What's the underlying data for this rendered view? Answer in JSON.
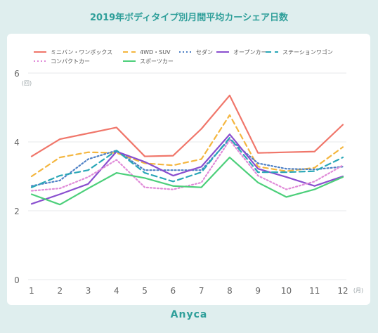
{
  "title": "2019年ボディタイプ別月間平均カーシェア日数",
  "brand": "Anyca",
  "chart_data": {
    "type": "line",
    "title": "2019年ボディタイプ別月間平均カーシェア日数",
    "ylabel": "(回)",
    "xlabel": "(月)",
    "x": [
      1,
      2,
      3,
      4,
      5,
      6,
      7,
      8,
      9,
      10,
      11,
      12
    ],
    "ylim": [
      0,
      6
    ],
    "yticks": [
      0,
      2,
      4,
      6
    ],
    "grid": true,
    "legend_position": "top-left",
    "series": [
      {
        "name": "ミニバン・ワンボックス",
        "color": "#f0766a",
        "dash": "",
        "values": [
          3.58,
          4.08,
          4.25,
          4.42,
          3.58,
          3.6,
          4.38,
          5.35,
          3.68,
          3.7,
          3.72,
          4.5
        ]
      },
      {
        "name": "4WD・SUV",
        "color": "#f4b63f",
        "dash": "7 5",
        "values": [
          3.0,
          3.55,
          3.7,
          3.68,
          3.38,
          3.32,
          3.5,
          4.78,
          3.28,
          3.15,
          3.25,
          3.85
        ]
      },
      {
        "name": "セダン",
        "color": "#4e80c5",
        "dash": "2 3",
        "values": [
          2.72,
          2.88,
          3.5,
          3.75,
          3.18,
          3.18,
          3.18,
          4.08,
          3.38,
          3.22,
          3.2,
          3.28
        ]
      },
      {
        "name": "オープンカー",
        "color": "#8a4fcf",
        "dash": "",
        "values": [
          2.2,
          2.48,
          2.78,
          3.72,
          3.42,
          3.02,
          3.28,
          4.22,
          3.22,
          2.98,
          2.72,
          3.0
        ]
      },
      {
        "name": "ステーションワゴン",
        "color": "#2aa7b7",
        "dash": "8 5",
        "values": [
          2.68,
          3.02,
          3.18,
          3.75,
          3.1,
          2.85,
          3.12,
          4.12,
          3.12,
          3.12,
          3.15,
          3.55
        ]
      },
      {
        "name": "コンパクトカー",
        "color": "#e08ad8",
        "dash": "2 3",
        "values": [
          2.58,
          2.65,
          2.98,
          3.48,
          2.68,
          2.62,
          2.82,
          4.05,
          3.02,
          2.62,
          2.85,
          3.32
        ]
      },
      {
        "name": "スポーツカー",
        "color": "#4ccf7a",
        "dash": "",
        "values": [
          2.48,
          2.18,
          2.65,
          3.1,
          2.95,
          2.72,
          2.68,
          3.55,
          2.82,
          2.4,
          2.62,
          2.98
        ]
      }
    ]
  }
}
